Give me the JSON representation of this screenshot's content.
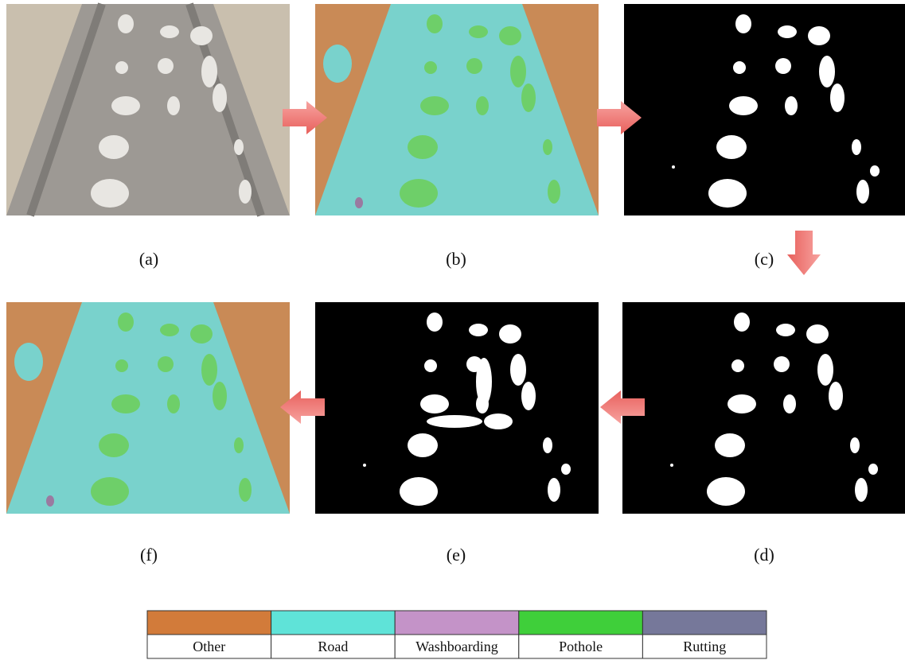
{
  "panels": [
    {
      "label": "(a)"
    },
    {
      "label": "(b)"
    },
    {
      "label": "(c)"
    },
    {
      "label": "(d)"
    },
    {
      "label": "(e)"
    },
    {
      "label": "(f)"
    }
  ],
  "legend": [
    {
      "name": "Other",
      "color": "#d27b3a"
    },
    {
      "name": "Road",
      "color": "#5fe3d8"
    },
    {
      "name": "Washboarding",
      "color": "#c493c8"
    },
    {
      "name": "Pothole",
      "color": "#3fcf3a"
    },
    {
      "name": "Rutting",
      "color": "#76789a"
    }
  ]
}
